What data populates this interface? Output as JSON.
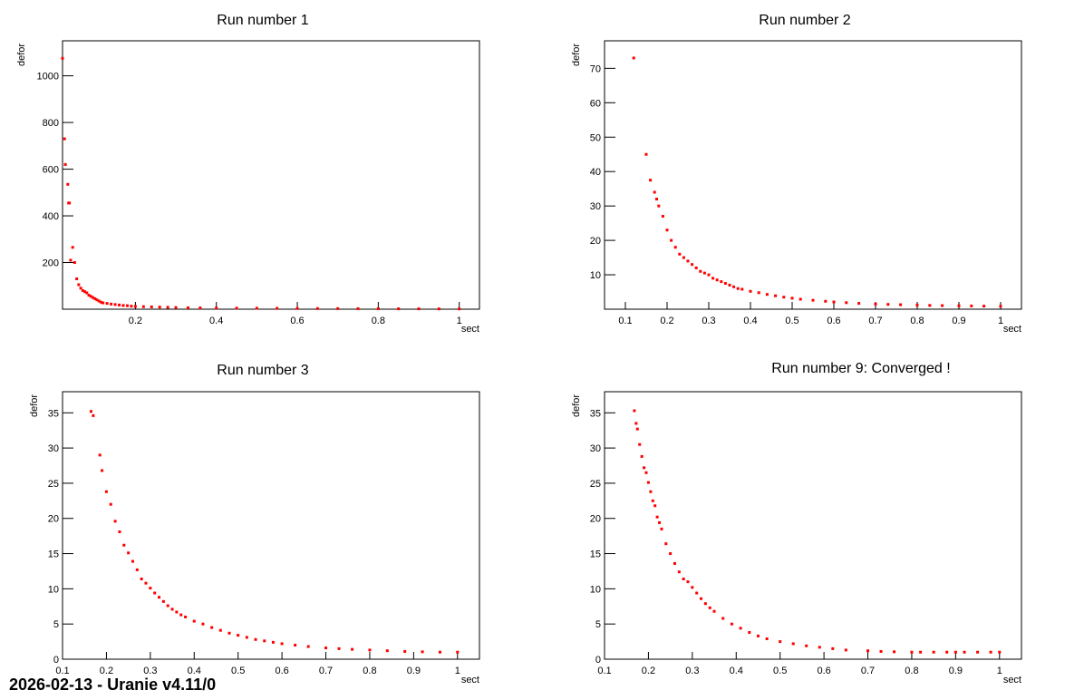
{
  "footer": "2026-02-13 - Uranie v4.11/0",
  "colors": {
    "points": "#ff0000",
    "axes": "#000000"
  },
  "chart_data": [
    {
      "type": "scatter",
      "title": "Run number 1",
      "xlabel": "sect",
      "ylabel": "defor",
      "xlim": [
        0.02,
        1.05
      ],
      "ylim": [
        0,
        1150
      ],
      "xticks": [
        0.2,
        0.4,
        0.6,
        0.8,
        1
      ],
      "xtick_labels": [
        "0.2",
        "0.4",
        "0.6",
        "0.8",
        "1"
      ],
      "yticks": [
        200,
        400,
        600,
        800,
        1000
      ],
      "ytick_labels": [
        "200",
        "400",
        "600",
        "800",
        "1000"
      ],
      "x": [
        0.02,
        0.025,
        0.027,
        0.033,
        0.035,
        0.037,
        0.04,
        0.045,
        0.05,
        0.055,
        0.06,
        0.065,
        0.07,
        0.075,
        0.08,
        0.085,
        0.09,
        0.095,
        0.1,
        0.105,
        0.11,
        0.115,
        0.12,
        0.13,
        0.14,
        0.15,
        0.16,
        0.17,
        0.18,
        0.19,
        0.2,
        0.22,
        0.24,
        0.26,
        0.28,
        0.3,
        0.33,
        0.36,
        0.4,
        0.45,
        0.5,
        0.55,
        0.6,
        0.65,
        0.7,
        0.75,
        0.8,
        0.85,
        0.9,
        0.95,
        1.0
      ],
      "y": [
        1075,
        730,
        620,
        535,
        455,
        455,
        210,
        265,
        200,
        130,
        105,
        90,
        80,
        75,
        70,
        60,
        55,
        50,
        45,
        40,
        35,
        30,
        27,
        25,
        22,
        20,
        18,
        16,
        15,
        13,
        12,
        11,
        10,
        9,
        8,
        7,
        6,
        5.5,
        5,
        4.5,
        4,
        3.5,
        3,
        2.8,
        2.5,
        2.2,
        2,
        1.8,
        1.6,
        1.4,
        1.2
      ]
    },
    {
      "type": "scatter",
      "title": "Run number 2",
      "xlabel": "sect",
      "ylabel": "defor",
      "xlim": [
        0.05,
        1.05
      ],
      "ylim": [
        0,
        78
      ],
      "xticks": [
        0.1,
        0.2,
        0.3,
        0.4,
        0.5,
        0.6,
        0.7,
        0.8,
        0.9,
        1
      ],
      "xtick_labels": [
        "0.1",
        "0.2",
        "0.3",
        "0.4",
        "0.5",
        "0.6",
        "0.7",
        "0.8",
        "0.9",
        "1"
      ],
      "yticks": [
        10,
        20,
        30,
        40,
        50,
        60,
        70
      ],
      "ytick_labels": [
        "10",
        "20",
        "30",
        "40",
        "50",
        "60",
        "70"
      ],
      "x": [
        0.12,
        0.15,
        0.16,
        0.17,
        0.175,
        0.18,
        0.19,
        0.2,
        0.21,
        0.22,
        0.23,
        0.24,
        0.25,
        0.26,
        0.27,
        0.28,
        0.29,
        0.3,
        0.31,
        0.32,
        0.33,
        0.34,
        0.35,
        0.36,
        0.37,
        0.38,
        0.4,
        0.42,
        0.44,
        0.46,
        0.48,
        0.5,
        0.52,
        0.55,
        0.58,
        0.6,
        0.63,
        0.66,
        0.7,
        0.73,
        0.76,
        0.8,
        0.83,
        0.86,
        0.9,
        0.93,
        0.96,
        1.0
      ],
      "y": [
        73,
        45,
        37.5,
        34,
        32,
        30,
        27,
        23,
        20,
        18,
        16,
        15,
        14,
        13,
        12,
        11,
        10.5,
        10,
        9,
        8.5,
        8,
        7.5,
        7,
        6.5,
        6,
        5.8,
        5.2,
        4.8,
        4.3,
        3.9,
        3.5,
        3.2,
        2.9,
        2.6,
        2.3,
        2.1,
        1.9,
        1.7,
        1.5,
        1.4,
        1.3,
        1.2,
        1.1,
        1.05,
        1.0,
        0.95,
        0.9,
        0.85
      ]
    },
    {
      "type": "scatter",
      "title": "Run number 3",
      "xlabel": "sect",
      "ylabel": "defor",
      "xlim": [
        0.1,
        1.05
      ],
      "ylim": [
        0,
        38
      ],
      "xticks": [
        0.1,
        0.2,
        0.3,
        0.4,
        0.5,
        0.6,
        0.7,
        0.8,
        0.9,
        1
      ],
      "xtick_labels": [
        "0.1",
        "0.2",
        "0.3",
        "0.4",
        "0.5",
        "0.6",
        "0.7",
        "0.8",
        "0.9",
        "1"
      ],
      "yticks": [
        0,
        5,
        10,
        15,
        20,
        25,
        30,
        35
      ],
      "ytick_labels": [
        "0",
        "5",
        "10",
        "15",
        "20",
        "25",
        "30",
        "35"
      ],
      "x": [
        0.165,
        0.17,
        0.185,
        0.19,
        0.2,
        0.21,
        0.22,
        0.23,
        0.24,
        0.25,
        0.26,
        0.27,
        0.28,
        0.29,
        0.3,
        0.31,
        0.32,
        0.33,
        0.34,
        0.35,
        0.36,
        0.37,
        0.38,
        0.4,
        0.42,
        0.44,
        0.46,
        0.48,
        0.5,
        0.52,
        0.54,
        0.56,
        0.58,
        0.6,
        0.63,
        0.66,
        0.7,
        0.73,
        0.76,
        0.8,
        0.84,
        0.88,
        0.92,
        0.96,
        1.0
      ],
      "y": [
        35.2,
        34.6,
        29,
        26.8,
        23.8,
        22,
        19.6,
        18.1,
        16.2,
        15.1,
        13.9,
        12.7,
        11.4,
        10.8,
        10.1,
        9.4,
        8.8,
        8.2,
        7.6,
        7.1,
        6.7,
        6.3,
        6.0,
        5.4,
        5.0,
        4.5,
        4.1,
        3.7,
        3.4,
        3.1,
        2.8,
        2.6,
        2.4,
        2.2,
        2.0,
        1.8,
        1.6,
        1.5,
        1.4,
        1.3,
        1.2,
        1.1,
        1.05,
        1.0,
        1.0
      ]
    },
    {
      "type": "scatter",
      "title": "Run number 9: Converged !",
      "xlabel": "sect",
      "ylabel": "defor",
      "xlim": [
        0.1,
        1.05
      ],
      "ylim": [
        0,
        38
      ],
      "xticks": [
        0.1,
        0.2,
        0.3,
        0.4,
        0.5,
        0.6,
        0.7,
        0.8,
        0.9,
        1
      ],
      "xtick_labels": [
        "0.1",
        "0.2",
        "0.3",
        "0.4",
        "0.5",
        "0.6",
        "0.7",
        "0.8",
        "0.9",
        "1"
      ],
      "yticks": [
        0,
        5,
        10,
        15,
        20,
        25,
        30,
        35
      ],
      "ytick_labels": [
        "0",
        "5",
        "10",
        "15",
        "20",
        "25",
        "30",
        "35"
      ],
      "x": [
        0.168,
        0.172,
        0.175,
        0.18,
        0.185,
        0.19,
        0.195,
        0.2,
        0.205,
        0.21,
        0.215,
        0.22,
        0.225,
        0.23,
        0.24,
        0.25,
        0.26,
        0.27,
        0.28,
        0.29,
        0.3,
        0.31,
        0.32,
        0.33,
        0.34,
        0.35,
        0.37,
        0.39,
        0.41,
        0.43,
        0.45,
        0.47,
        0.5,
        0.53,
        0.56,
        0.59,
        0.62,
        0.65,
        0.7,
        0.73,
        0.76,
        0.8,
        0.82,
        0.85,
        0.88,
        0.9,
        0.92,
        0.95,
        0.98,
        1.0
      ],
      "y": [
        35.3,
        33.5,
        32.7,
        30.5,
        28.8,
        27.2,
        26.5,
        25.1,
        23.8,
        22.5,
        21.8,
        20.2,
        19.4,
        18.5,
        16.4,
        15,
        13.6,
        12.4,
        11.4,
        11,
        10.2,
        9.4,
        8.6,
        7.9,
        7.3,
        6.8,
        5.8,
        5.0,
        4.4,
        3.8,
        3.3,
        2.9,
        2.5,
        2.2,
        1.9,
        1.7,
        1.5,
        1.3,
        1.2,
        1.1,
        1.05,
        1.0,
        1.0,
        1.0,
        1.0,
        1.0,
        1.0,
        1.0,
        1.0,
        1.0
      ]
    }
  ]
}
